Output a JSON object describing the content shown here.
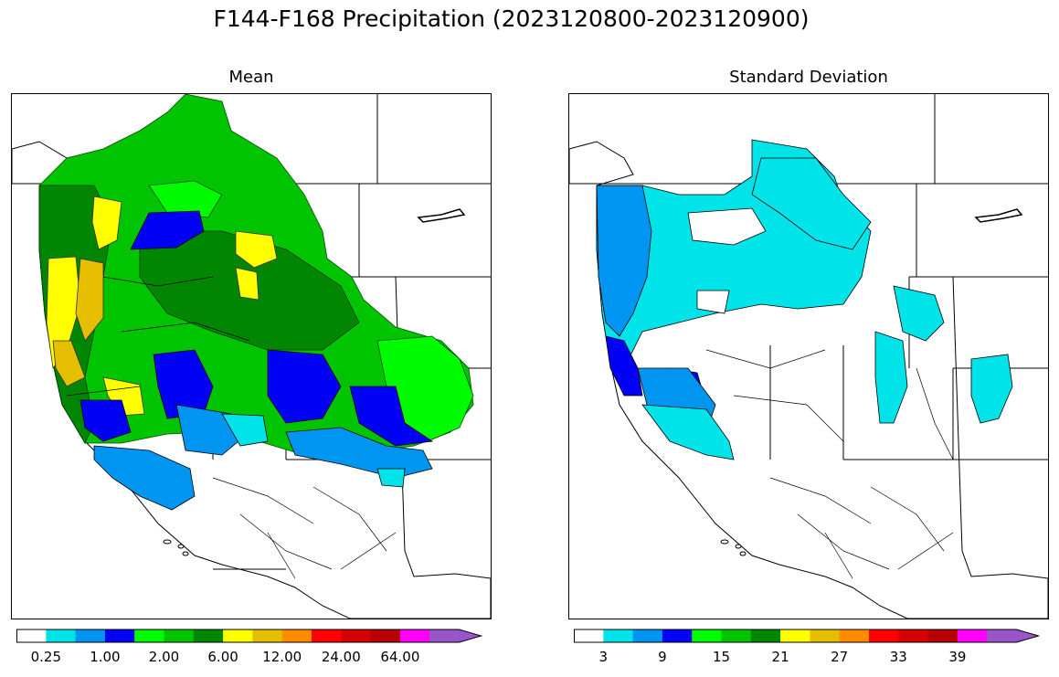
{
  "title": "F144-F168 Precipitation (2023120800-2023120900)",
  "panels": [
    {
      "subtitle": "Mean",
      "variable": "mean"
    },
    {
      "subtitle": "Standard Deviation",
      "variable": "standard-deviation"
    }
  ],
  "colorbar": {
    "colors": [
      "#ffffff",
      "#00e3e8",
      "#0095f0",
      "#0000f5",
      "#00fa00",
      "#00c400",
      "#008600",
      "#ffff00",
      "#e6be00",
      "#ff8c00",
      "#ff0000",
      "#d60000",
      "#b80000",
      "#ff00ff",
      "#9955c9"
    ],
    "mean_ticks": [
      "0.25",
      "1.00",
      "2.00",
      "6.00",
      "12.00",
      "24.00",
      "64.00"
    ],
    "sd_ticks": [
      "3",
      "9",
      "15",
      "21",
      "27",
      "33",
      "39"
    ]
  },
  "map_colors": {
    "ocean": "#ffffff",
    "mean_dark_green": "#008600",
    "mean_green": "#00c400",
    "mean_light_green": "#00fa00",
    "mean_yellow": "#ffff00",
    "mean_gold": "#e6be00",
    "mean_blue": "#0000f5",
    "mean_mid_blue": "#0095f0",
    "mean_cyan": "#00e3e8",
    "sd_cyan": "#00e3e8",
    "sd_mid_blue": "#0095f0",
    "sd_blue": "#0000f5"
  }
}
